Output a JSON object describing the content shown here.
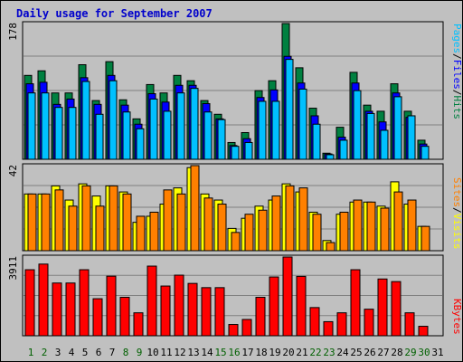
{
  "title": "Daily usage for September 2007",
  "colors": {
    "background": "#c0c0c0",
    "title": "#0000cc",
    "hits": "#008040",
    "files": "#0000ff",
    "pages": "#00c0ff",
    "visits": "#ffff00",
    "sites": "#ff8000",
    "kbytes": "#ff0000",
    "day_weekday": "#006000",
    "day_weekend": "#000000",
    "grid": "#808080"
  },
  "chart_data": [
    {
      "type": "bar",
      "panel": "top",
      "title": "",
      "legend": [
        "Pages",
        "/",
        "Files",
        "/",
        "Hits"
      ],
      "legend_placement": "right-vertical",
      "ylabel_max": "178",
      "ylim": [
        0,
        178
      ],
      "grid": true,
      "categories": [
        "1",
        "2",
        "3",
        "4",
        "5",
        "6",
        "7",
        "8",
        "9",
        "10",
        "11",
        "12",
        "13",
        "14",
        "15",
        "16",
        "17",
        "18",
        "19",
        "20",
        "21",
        "22",
        "23",
        "24",
        "25",
        "26",
        "27",
        "28",
        "29",
        "30",
        "31"
      ],
      "series": [
        {
          "name": "Hits",
          "values": [
            110,
            116,
            87,
            87,
            124,
            77,
            128,
            78,
            53,
            98,
            87,
            110,
            103,
            77,
            59,
            22,
            35,
            90,
            103,
            178,
            120,
            67,
            8,
            42,
            114,
            71,
            63,
            99,
            63,
            25,
            0
          ]
        },
        {
          "name": "Files",
          "values": [
            99,
            101,
            72,
            79,
            107,
            72,
            110,
            71,
            46,
            86,
            75,
            97,
            97,
            73,
            53,
            18,
            27,
            81,
            91,
            135,
            100,
            57,
            7,
            29,
            100,
            63,
            49,
            87,
            55,
            20,
            0
          ]
        },
        {
          "name": "Pages",
          "values": [
            87,
            87,
            68,
            68,
            102,
            59,
            103,
            62,
            40,
            79,
            63,
            87,
            93,
            62,
            52,
            17,
            22,
            76,
            76,
            131,
            92,
            46,
            6,
            25,
            90,
            60,
            38,
            82,
            57,
            17,
            0
          ]
        }
      ]
    },
    {
      "type": "bar",
      "panel": "middle",
      "title": "",
      "legend": [
        "Sites",
        "/",
        "Visits"
      ],
      "legend_placement": "right-vertical",
      "ylabel_max": "42",
      "ylim": [
        0,
        42
      ],
      "grid": true,
      "categories": [
        "1",
        "2",
        "3",
        "4",
        "5",
        "6",
        "7",
        "8",
        "9",
        "10",
        "11",
        "12",
        "13",
        "14",
        "15",
        "16",
        "17",
        "18",
        "19",
        "20",
        "21",
        "22",
        "23",
        "24",
        "25",
        "26",
        "27",
        "28",
        "29",
        "30",
        "31"
      ],
      "series": [
        {
          "name": "Visits",
          "values": [
            28,
            28,
            32,
            25,
            33,
            27,
            32,
            29,
            14,
            17,
            23,
            31,
            41,
            28,
            25,
            11,
            16,
            22,
            25,
            33,
            29,
            19,
            5,
            18,
            24,
            24,
            22,
            34,
            23,
            12,
            0
          ]
        },
        {
          "name": "Sites",
          "values": [
            28,
            28,
            30,
            22,
            32,
            22,
            32,
            28,
            17,
            19,
            30,
            28,
            42,
            26,
            23,
            9,
            18,
            20,
            27,
            32,
            31,
            18,
            4,
            19,
            25,
            24,
            21,
            29,
            25,
            12,
            0
          ]
        }
      ]
    },
    {
      "type": "bar",
      "panel": "bottom",
      "title": "",
      "legend": [
        "KBytes"
      ],
      "legend_placement": "right-vertical",
      "ylabel_max": "3911",
      "ylim": [
        0,
        3911
      ],
      "grid": true,
      "categories": [
        "1",
        "2",
        "3",
        "4",
        "5",
        "6",
        "7",
        "8",
        "9",
        "10",
        "11",
        "12",
        "13",
        "14",
        "15",
        "16",
        "17",
        "18",
        "19",
        "20",
        "21",
        "22",
        "23",
        "24",
        "25",
        "26",
        "27",
        "28",
        "29",
        "30",
        "31"
      ],
      "series": [
        {
          "name": "KBytes",
          "values": [
            3280,
            3560,
            2620,
            2620,
            3280,
            1840,
            2960,
            1910,
            1140,
            3460,
            2470,
            3010,
            2600,
            2390,
            2390,
            560,
            810,
            1910,
            2920,
            3911,
            2950,
            1400,
            700,
            1140,
            3280,
            1320,
            2820,
            2690,
            1140,
            470,
            0
          ]
        }
      ]
    }
  ],
  "weekend_days": [
    1,
    2,
    8,
    9,
    15,
    16,
    22,
    23,
    29,
    30
  ]
}
